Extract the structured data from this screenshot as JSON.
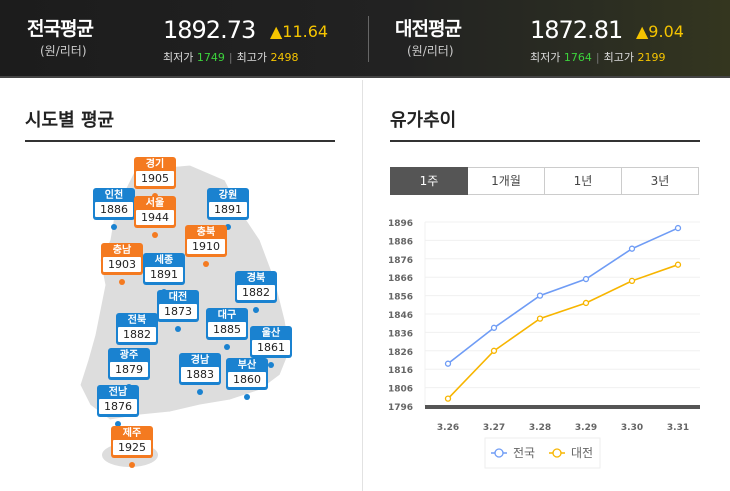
{
  "header": {
    "national": {
      "title": "전국평균",
      "unit": "(원/리터)",
      "price": "1892.73",
      "change": "▲11.64",
      "min_label": "최저가",
      "min": "1749",
      "max_label": "최고가",
      "max": "2498"
    },
    "daejeon": {
      "title": "대전평균",
      "unit": "(원/리터)",
      "price": "1872.81",
      "change": "▲9.04",
      "min_label": "최저가",
      "min": "1764",
      "max_label": "최고가",
      "max": "2199"
    }
  },
  "map_section": {
    "title": "시도별 평균",
    "regions": [
      {
        "name": "경기",
        "value": "1905",
        "color": "orange"
      },
      {
        "name": "인천",
        "value": "1886",
        "color": "blue"
      },
      {
        "name": "서울",
        "value": "1944",
        "color": "orange"
      },
      {
        "name": "강원",
        "value": "1891",
        "color": "blue"
      },
      {
        "name": "충북",
        "value": "1910",
        "color": "orange"
      },
      {
        "name": "충남",
        "value": "1903",
        "color": "orange"
      },
      {
        "name": "세종",
        "value": "1891",
        "color": "blue"
      },
      {
        "name": "경북",
        "value": "1882",
        "color": "blue"
      },
      {
        "name": "대전",
        "value": "1873",
        "color": "blue"
      },
      {
        "name": "전북",
        "value": "1882",
        "color": "blue"
      },
      {
        "name": "대구",
        "value": "1885",
        "color": "blue"
      },
      {
        "name": "울산",
        "value": "1861",
        "color": "blue"
      },
      {
        "name": "광주",
        "value": "1879",
        "color": "blue"
      },
      {
        "name": "경남",
        "value": "1883",
        "color": "blue"
      },
      {
        "name": "부산",
        "value": "1860",
        "color": "blue"
      },
      {
        "name": "전남",
        "value": "1876",
        "color": "blue"
      },
      {
        "name": "제주",
        "value": "1925",
        "color": "orange"
      }
    ]
  },
  "trend_section": {
    "title": "유가추이",
    "tabs": [
      "1주",
      "1개월",
      "1년",
      "3년"
    ],
    "active_tab": "1주"
  },
  "chart_data": {
    "type": "line",
    "categories": [
      "3.26",
      "3.27",
      "3.28",
      "3.29",
      "3.30",
      "3.31"
    ],
    "series": [
      {
        "name": "전국",
        "color": "#6f9cf5",
        "values": [
          1819,
          1838.5,
          1856,
          1865,
          1881.5,
          1892.7
        ]
      },
      {
        "name": "대전",
        "color": "#f7b500",
        "values": [
          1800,
          1826,
          1843.5,
          1852,
          1864,
          1872.8
        ]
      }
    ],
    "yticks": [
      "1796",
      "1806",
      "1816",
      "1826",
      "1836",
      "1846",
      "1856",
      "1866",
      "1876",
      "1886",
      "1896"
    ],
    "ylim": [
      1796,
      1896
    ],
    "grid": true,
    "legend": "bottom"
  }
}
